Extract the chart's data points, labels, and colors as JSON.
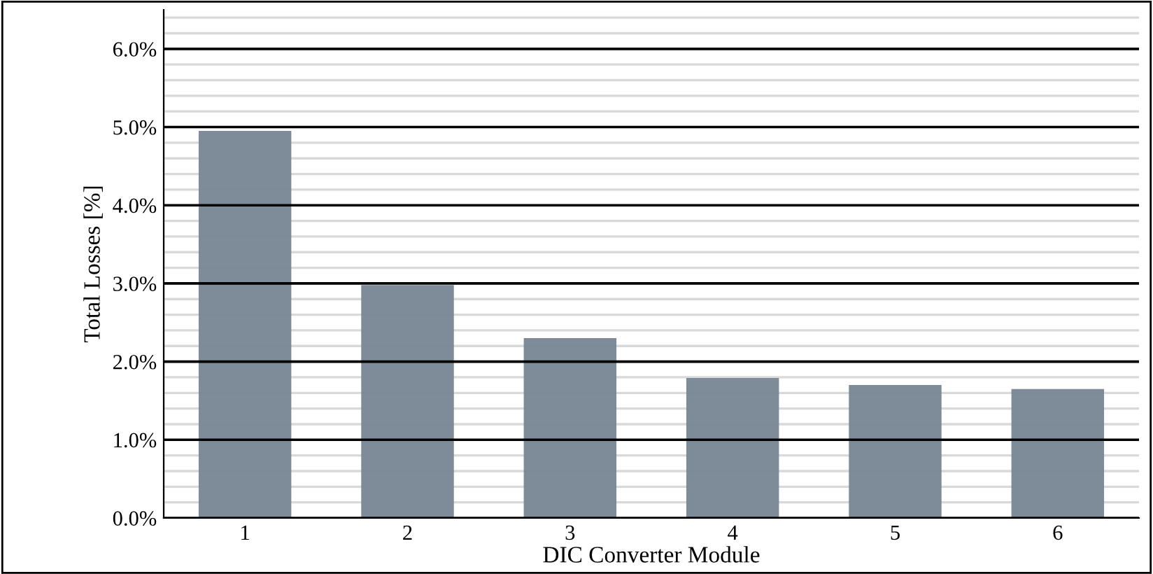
{
  "chart_data": {
    "type": "bar",
    "xlabel": "DIC Converter Module",
    "ylabel": "Total Losses [%]",
    "categories": [
      "1",
      "2",
      "3",
      "4",
      "5",
      "6"
    ],
    "values": [
      4.95,
      2.98,
      2.3,
      1.79,
      1.7,
      1.65
    ],
    "color": "#7a8795",
    "ylim": [
      0,
      6.5
    ],
    "yticks": [
      {
        "value": 0,
        "label": "0.0%"
      },
      {
        "value": 1,
        "label": "1.0%"
      },
      {
        "value": 2,
        "label": "2.0%"
      },
      {
        "value": 3,
        "label": "3.0%"
      },
      {
        "value": 4,
        "label": "4.0%"
      },
      {
        "value": 5,
        "label": "5.0%"
      },
      {
        "value": 6,
        "label": "6.0%"
      }
    ],
    "grid": "y"
  }
}
